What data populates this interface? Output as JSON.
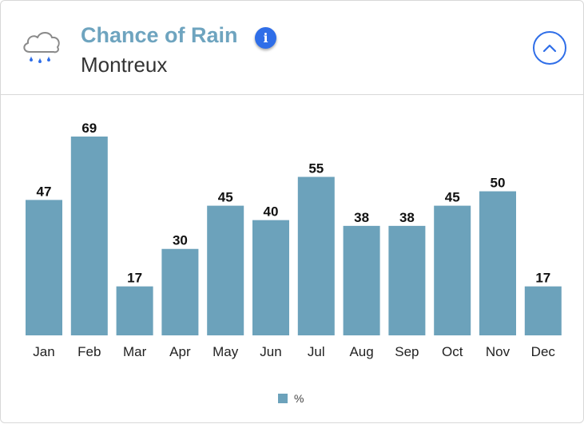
{
  "header": {
    "title": "Chance of Rain",
    "subtitle": "Montreux",
    "icon": "rain-cloud-icon",
    "info_icon": "info-icon",
    "collapse_icon": "chevron-up-icon"
  },
  "colors": {
    "bar": "#6ca2bb",
    "title": "#6ea4bf",
    "accent": "#2f6ee8"
  },
  "chart_data": {
    "type": "bar",
    "categories": [
      "Jan",
      "Feb",
      "Mar",
      "Apr",
      "May",
      "Jun",
      "Jul",
      "Aug",
      "Sep",
      "Oct",
      "Nov",
      "Dec"
    ],
    "series": [
      {
        "name": "%",
        "values": [
          47,
          69,
          17,
          30,
          45,
          40,
          55,
          38,
          38,
          45,
          50,
          17
        ]
      }
    ],
    "title": "Chance of Rain",
    "subtitle": "Montreux",
    "xlabel": "",
    "ylabel": "",
    "ylim": [
      0,
      69
    ],
    "grid": false,
    "legend_position": "bottom-center",
    "data_labels": true
  }
}
